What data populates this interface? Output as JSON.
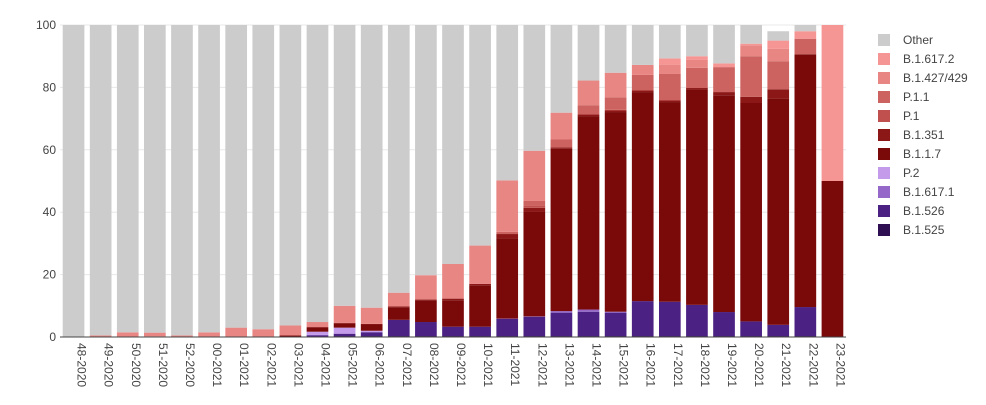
{
  "chart_data": {
    "type": "bar",
    "stacked": true,
    "title": "",
    "xlabel": "",
    "ylabel": "",
    "ylim": [
      0,
      100
    ],
    "yticks": [
      0,
      20,
      40,
      60,
      80,
      100
    ],
    "grid": true,
    "legend_position": "right",
    "categories": [
      "48-2020",
      "49-2020",
      "50-2020",
      "51-2020",
      "52-2020",
      "00-2021",
      "01-2021",
      "02-2021",
      "03-2021",
      "04-2021",
      "05-2021",
      "06-2021",
      "07-2021",
      "08-2021",
      "09-2021",
      "10-2021",
      "11-2021",
      "12-2021",
      "13-2021",
      "14-2021",
      "15-2021",
      "16-2021",
      "17-2021",
      "18-2021",
      "19-2021",
      "20-2021",
      "21-2021",
      "22-2021",
      "23-2021"
    ],
    "series": [
      {
        "name": "B.1.525",
        "color": "#2d0f52",
        "values": [
          0,
          0,
          0,
          0,
          0,
          0,
          0,
          0,
          0,
          0,
          0.3,
          0.3,
          0.3,
          0.3,
          0.3,
          0.3,
          0.3,
          0.3,
          0.3,
          0.3,
          0.3,
          0.3,
          0.3,
          0.3,
          0.3,
          0.3,
          0.3,
          0.3,
          0
        ]
      },
      {
        "name": "B.1.526",
        "color": "#4b2283",
        "values": [
          0,
          0,
          0,
          0,
          0,
          0,
          0,
          0,
          0,
          0.5,
          0.7,
          1.2,
          5.2,
          4.5,
          3.0,
          3.0,
          5.5,
          6.2,
          7.5,
          7.8,
          7.5,
          11.2,
          11.0,
          10.0,
          7.7,
          4.7,
          3.6,
          9.3,
          0
        ]
      },
      {
        "name": "B.1.617.1",
        "color": "#9467c8",
        "values": [
          0,
          0,
          0,
          0,
          0,
          0,
          0,
          0,
          0,
          0.2,
          0.2,
          0.1,
          0,
          0,
          0,
          0,
          0.1,
          0.1,
          0.5,
          0.7,
          0.3,
          0,
          0,
          0,
          0,
          0,
          0,
          0,
          0
        ]
      },
      {
        "name": "P.2",
        "color": "#c39bea",
        "values": [
          0,
          0,
          0,
          0,
          0,
          0,
          0,
          0,
          0,
          1.0,
          1.8,
          0.4,
          0,
          0,
          0,
          0,
          0,
          0,
          0,
          0,
          0,
          0,
          0,
          0,
          0,
          0,
          0,
          0,
          0
        ]
      },
      {
        "name": "B.1.1.7",
        "color": "#7a0a0a",
        "values": [
          0,
          0,
          0,
          0,
          0,
          0,
          0,
          0,
          0.5,
          1.3,
          1.2,
          2.0,
          4.0,
          7.0,
          8.5,
          13.3,
          25.7,
          33.6,
          52.0,
          62.0,
          64.0,
          67.0,
          64.0,
          69.0,
          69.5,
          70.0,
          72.5,
          81.0,
          50.0
        ]
      },
      {
        "name": "B.1.351",
        "color": "#8c1717",
        "values": [
          0,
          0,
          0,
          0.2,
          0,
          0,
          0,
          0,
          0,
          0.2,
          0.3,
          0.2,
          0.3,
          0.2,
          0.5,
          0.4,
          1.4,
          1.2,
          0.5,
          0.5,
          0.5,
          0.5,
          0.5,
          0.5,
          1.0,
          2.0,
          3.0,
          0,
          0
        ]
      },
      {
        "name": "P.1",
        "color": "#c0504d",
        "values": [
          0,
          0,
          0,
          0,
          0,
          0,
          0,
          0,
          0,
          0,
          0,
          0,
          0,
          0,
          0,
          0,
          0.2,
          0.6,
          0,
          0,
          0.2,
          0,
          0,
          0,
          0,
          0,
          0,
          0,
          0
        ]
      },
      {
        "name": "P.1.1",
        "color": "#cd6360",
        "values": [
          0,
          0,
          0,
          0,
          0,
          0,
          0,
          0,
          0,
          0,
          0,
          0,
          0,
          0,
          0,
          0,
          0.5,
          1.6,
          2.5,
          3.0,
          4.0,
          5.0,
          8.5,
          6.5,
          8.0,
          13.0,
          9.0,
          5.0,
          0
        ]
      },
      {
        "name": "B.1.427/429",
        "color": "#e88683",
        "values": [
          0,
          0.5,
          1.5,
          1.2,
          0.5,
          1.5,
          3.0,
          2.5,
          3.2,
          1.6,
          5.5,
          5.2,
          4.4,
          7.8,
          11.1,
          12.3,
          16.5,
          16.1,
          8.6,
          7.9,
          7.9,
          3.2,
          3.0,
          2.5,
          0,
          3.5,
          4.0,
          0,
          0
        ]
      },
      {
        "name": "B.1.617.2",
        "color": "#f59594",
        "values": [
          0,
          0,
          0,
          0,
          0,
          0,
          0,
          0,
          0,
          0,
          0,
          0,
          0,
          0,
          0,
          0,
          0,
          0,
          0,
          0,
          0,
          0,
          2.0,
          1.2,
          1.2,
          0.5,
          2.6,
          2.4,
          50.0
        ]
      },
      {
        "name": "Other",
        "color": "#cccccc",
        "values": [
          100,
          99.5,
          98.5,
          98.6,
          99.5,
          98.5,
          97.0,
          97.5,
          96.3,
          95.2,
          90.0,
          90.6,
          85.8,
          80.2,
          76.6,
          70.7,
          49.8,
          40.3,
          28.1,
          17.8,
          15.3,
          12.8,
          10.7,
          10.0,
          12.3,
          6.0,
          3.0,
          2.0,
          0
        ]
      }
    ]
  }
}
